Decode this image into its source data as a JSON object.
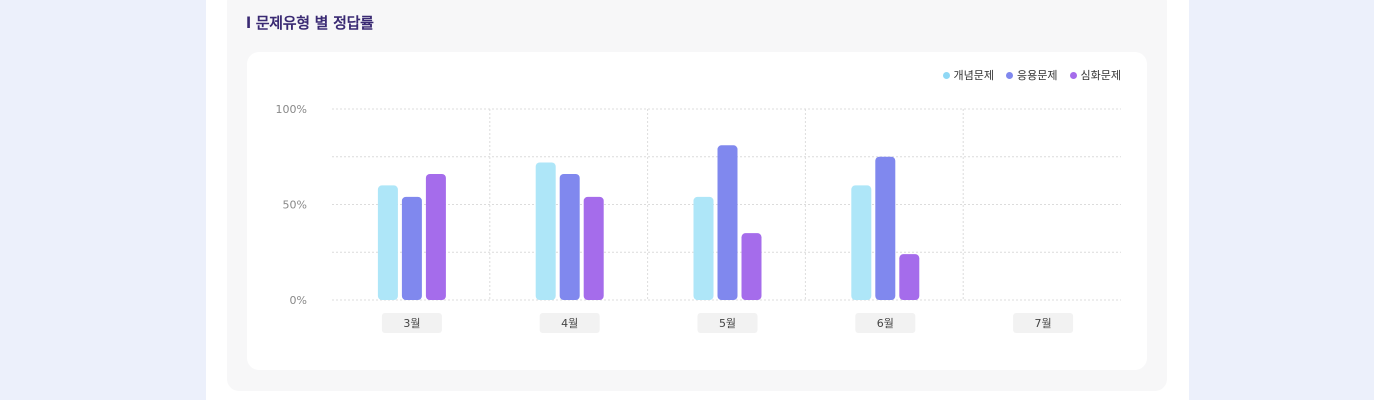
{
  "section": {
    "title": "l 문제유형 별 정답률"
  },
  "chart_data": {
    "type": "bar",
    "categories": [
      "3월",
      "4월",
      "5월",
      "6월",
      "7월"
    ],
    "series": [
      {
        "name": "개념문제",
        "color": "#aee6f8",
        "values": [
          60,
          72,
          54,
          60,
          null
        ]
      },
      {
        "name": "응용문제",
        "color": "#8088ee",
        "values": [
          54,
          66,
          81,
          75,
          null
        ]
      },
      {
        "name": "심화문제",
        "color": "#a56ceb",
        "values": [
          66,
          54,
          35,
          24,
          null
        ]
      }
    ],
    "yticks": [
      "100%",
      "50%",
      "0%"
    ],
    "ylim": [
      0,
      100
    ],
    "legend_position": "top-right",
    "grid": true
  }
}
